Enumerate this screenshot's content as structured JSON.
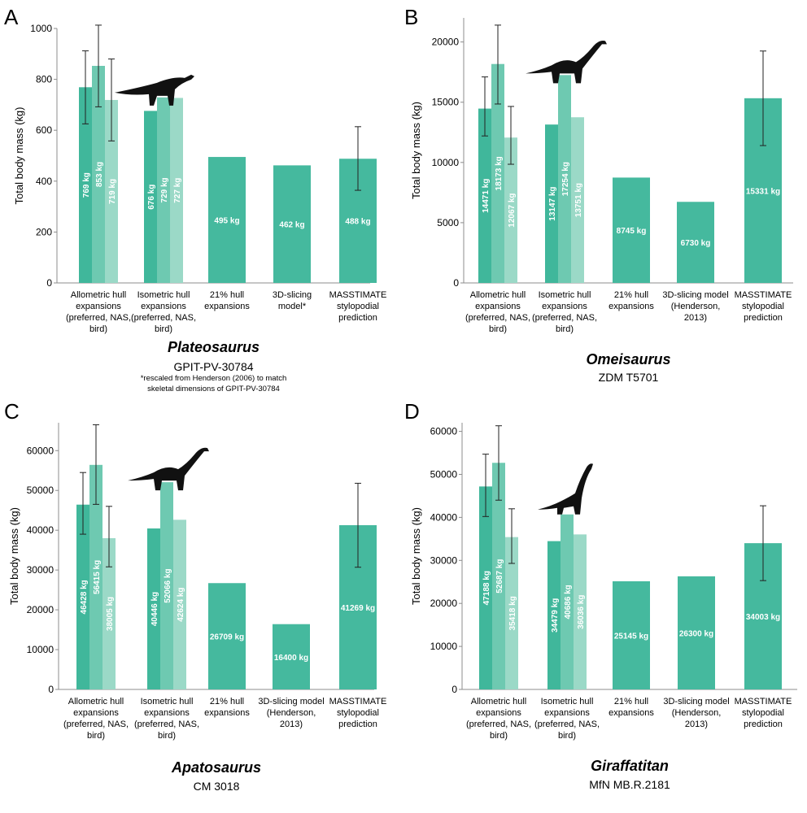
{
  "colors": {
    "preferred": "#40b79b",
    "nas": "#6ec9b1",
    "bird": "#9bd9c7",
    "single": "#45b99e",
    "errorbar": "#222222"
  },
  "icons": [
    "dinosaur-silhouette-icon"
  ],
  "chart_data": [
    {
      "type": "bar",
      "panel": "A",
      "title": "Plateosaurus",
      "subtitle": "GPIT-PV-30784",
      "note_lines": [
        "*rescaled from Henderson (2006) to match",
        "skeletal dimensions of GPIT-PV-30784"
      ],
      "ylabel": "Total body mass (kg)",
      "ylim": [
        0,
        1000
      ],
      "yticks": [
        0,
        200,
        400,
        600,
        800,
        1000
      ],
      "ytick_labels": [
        "0",
        "200",
        "400",
        "600",
        "800",
        "1000"
      ],
      "groups": [
        {
          "label": [
            "Allometric hull",
            "expansions",
            "(preferred, NAS,",
            "bird)"
          ],
          "bars": [
            {
              "value": 769,
              "label": "769 kg",
              "color": "preferred",
              "err": [
                625,
                912
              ]
            },
            {
              "value": 853,
              "label": "853 kg",
              "color": "nas",
              "err": [
                692,
                1013
              ]
            },
            {
              "value": 719,
              "label": "719 kg",
              "color": "bird",
              "err": [
                558,
                880
              ]
            }
          ]
        },
        {
          "label": [
            "Isometric hull",
            "expansions",
            "(preferred, NAS,",
            "bird)"
          ],
          "silhouette": "prosauropod",
          "bars": [
            {
              "value": 676,
              "label": "676 kg",
              "color": "preferred"
            },
            {
              "value": 729,
              "label": "729 kg",
              "color": "nas"
            },
            {
              "value": 727,
              "label": "727 kg",
              "color": "bird"
            }
          ]
        },
        {
          "label": [
            "21% hull",
            "expansions"
          ],
          "bars": [
            {
              "value": 495,
              "label": "495 kg",
              "color": "single"
            }
          ]
        },
        {
          "label": [
            "3D-slicing",
            "model*"
          ],
          "bars": [
            {
              "value": 462,
              "label": "462 kg",
              "color": "single"
            }
          ]
        },
        {
          "label": [
            "MASSTIMATE",
            "stylopodial",
            "prediction"
          ],
          "bars": [
            {
              "value": 488,
              "label": "488 kg",
              "color": "single",
              "err": [
                364,
                614
              ]
            }
          ]
        }
      ]
    },
    {
      "type": "bar",
      "panel": "B",
      "title": "Omeisaurus",
      "subtitle": "ZDM T5701",
      "ylabel": "Total body mass (kg)",
      "ylim": [
        0,
        22000
      ],
      "yticks": [
        0,
        5000,
        10000,
        15000,
        20000
      ],
      "ytick_labels": [
        "0",
        "5000",
        "10000",
        "15000",
        "20000"
      ],
      "groups": [
        {
          "label": [
            "Allometric hull",
            "expansions",
            "(preferred, NAS,",
            "bird)"
          ],
          "bars": [
            {
              "value": 14471,
              "label": "14471 kg",
              "color": "preferred",
              "err": [
                12200,
                17100
              ]
            },
            {
              "value": 18173,
              "label": "18173 kg",
              "color": "nas",
              "err": [
                14850,
                21400
              ]
            },
            {
              "value": 12067,
              "label": "12067 kg",
              "color": "bird",
              "err": [
                9850,
                14650
              ]
            }
          ]
        },
        {
          "label": [
            "Isometric hull",
            "expansions",
            "(preferred, NAS,",
            "bird)"
          ],
          "silhouette": "sauropod",
          "bars": [
            {
              "value": 13147,
              "label": "13147 kg",
              "color": "preferred"
            },
            {
              "value": 17254,
              "label": "17254 kg",
              "color": "nas"
            },
            {
              "value": 13751,
              "label": "13751 kg",
              "color": "bird"
            }
          ]
        },
        {
          "label": [
            "21% hull",
            "expansions"
          ],
          "bars": [
            {
              "value": 8745,
              "label": "8745 kg",
              "color": "single"
            }
          ]
        },
        {
          "label": [
            "3D-slicing model",
            "(Henderson,",
            "2013)"
          ],
          "bars": [
            {
              "value": 6730,
              "label": "6730 kg",
              "color": "single"
            }
          ]
        },
        {
          "label": [
            "MASSTIMATE",
            "stylopodial",
            "prediction"
          ],
          "bars": [
            {
              "value": 15331,
              "label": "15331 kg",
              "color": "single",
              "err": [
                11400,
                19250
              ]
            }
          ]
        }
      ]
    },
    {
      "type": "bar",
      "panel": "C",
      "title": "Apatosaurus",
      "subtitle": "CM 3018",
      "ylabel": "Total body mass (kg)",
      "ylim": [
        0,
        67000
      ],
      "yticks": [
        0,
        10000,
        20000,
        30000,
        40000,
        50000,
        60000
      ],
      "ytick_labels": [
        "0",
        "10000",
        "20000",
        "30000",
        "40000",
        "50000",
        "60000"
      ],
      "groups": [
        {
          "label": [
            "Allometric hull",
            "expansions",
            "(preferred, NAS,",
            "bird)"
          ],
          "bars": [
            {
              "value": 46428,
              "label": "46428 kg",
              "color": "preferred",
              "err": [
                39000,
                54500
              ]
            },
            {
              "value": 56415,
              "label": "56415 kg",
              "color": "nas",
              "err": [
                46500,
                66500
              ]
            },
            {
              "value": 38005,
              "label": "38005 kg",
              "color": "bird",
              "err": [
                30800,
                46000
              ]
            }
          ]
        },
        {
          "label": [
            "Isometric hull",
            "expansions",
            "(preferred, NAS,",
            "bird)"
          ],
          "silhouette": "sauropod",
          "bars": [
            {
              "value": 40446,
              "label": "40446 kg",
              "color": "preferred"
            },
            {
              "value": 52066,
              "label": "52066 kg",
              "color": "nas"
            },
            {
              "value": 42624,
              "label": "42624 kg",
              "color": "bird"
            }
          ]
        },
        {
          "label": [
            "21% hull",
            "expansions"
          ],
          "bars": [
            {
              "value": 26709,
              "label": "26709 kg",
              "color": "single"
            }
          ]
        },
        {
          "label": [
            "3D-slicing model",
            "(Henderson,",
            "2013)"
          ],
          "bars": [
            {
              "value": 16400,
              "label": "16400 kg",
              "color": "single"
            }
          ]
        },
        {
          "label": [
            "MASSTIMATE",
            "stylopodial",
            "prediction"
          ],
          "bars": [
            {
              "value": 41269,
              "label": "41269 kg",
              "color": "single",
              "err": [
                30700,
                51800
              ]
            }
          ]
        }
      ]
    },
    {
      "type": "bar",
      "panel": "D",
      "title": "Giraffatitan",
      "subtitle": "MfN MB.R.2181",
      "ylabel": "Total body mass (kg)",
      "ylim": [
        0,
        62000
      ],
      "yticks": [
        0,
        10000,
        20000,
        30000,
        40000,
        50000,
        60000
      ],
      "ytick_labels": [
        "0",
        "10000",
        "20000",
        "30000",
        "40000",
        "50000",
        "60000"
      ],
      "groups": [
        {
          "label": [
            "Allometric hull",
            "expansions",
            "(preferred, NAS,",
            "bird)"
          ],
          "bars": [
            {
              "value": 47188,
              "label": "47188 kg",
              "color": "preferred",
              "err": [
                40200,
                54700
              ]
            },
            {
              "value": 52687,
              "label": "52687 kg",
              "color": "nas",
              "err": [
                44000,
                61300
              ]
            },
            {
              "value": 35418,
              "label": "35418 kg",
              "color": "bird",
              "err": [
                29300,
                42000
              ]
            }
          ]
        },
        {
          "label": [
            "Isometric hull",
            "expansions",
            "(preferred, NAS,",
            "bird)"
          ],
          "silhouette": "brachiosaur",
          "bars": [
            {
              "value": 34479,
              "label": "34479 kg",
              "color": "preferred"
            },
            {
              "value": 40686,
              "label": "40686 kg",
              "color": "nas"
            },
            {
              "value": 36036,
              "label": "36036 kg",
              "color": "bird"
            }
          ]
        },
        {
          "label": [
            "21% hull",
            "expansions"
          ],
          "bars": [
            {
              "value": 25145,
              "label": "25145 kg",
              "color": "single"
            }
          ]
        },
        {
          "label": [
            "3D-slicing model",
            "(Henderson,",
            "2013)"
          ],
          "bars": [
            {
              "value": 26300,
              "label": "26300 kg",
              "color": "single"
            }
          ]
        },
        {
          "label": [
            "MASSTIMATE",
            "stylopodial",
            "prediction"
          ],
          "bars": [
            {
              "value": 34003,
              "label": "34003 kg",
              "color": "single",
              "err": [
                25300,
                42700
              ]
            }
          ]
        }
      ]
    }
  ]
}
